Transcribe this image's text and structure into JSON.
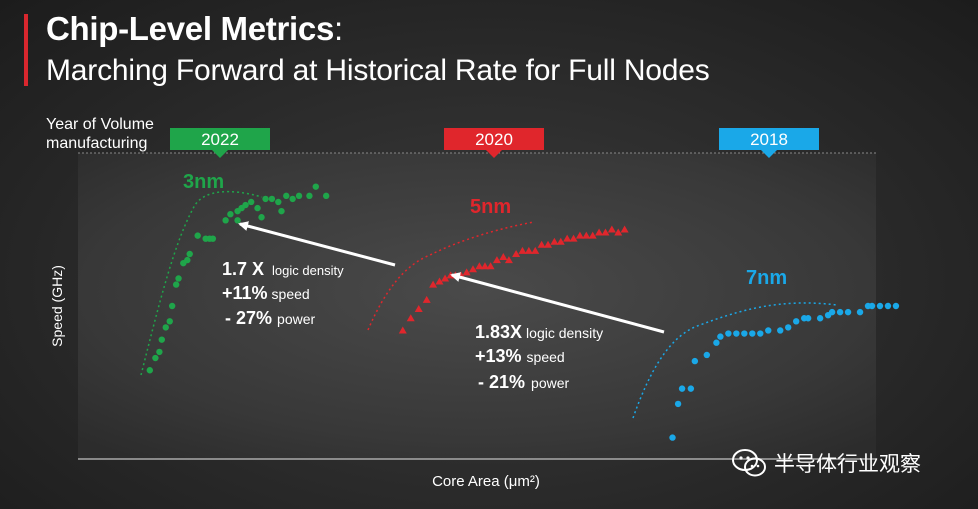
{
  "slide": {
    "title_bold": "Chip-Level Metrics",
    "title_colon": ":",
    "subtitle": "Marching Forward at Historical Rate for Full Nodes",
    "year_label": "Year of Volume manufacturing",
    "watermark": "半导体行业观察"
  },
  "colors": {
    "green": "#1fa54a",
    "red": "#e0262c",
    "blue": "#1aa8e8"
  },
  "chart_data": {
    "type": "scatter",
    "title": "",
    "xlabel": "Core Area (μm²)",
    "ylabel": "Speed (GHz)",
    "xlim": [
      0,
      100
    ],
    "ylim": [
      0,
      100
    ],
    "grid": false,
    "series": [
      {
        "name": "3nm",
        "year": "2022",
        "color": "green",
        "marker": "circle",
        "points": [
          [
            9.5,
            29
          ],
          [
            10.2,
            33
          ],
          [
            10.7,
            35
          ],
          [
            11.0,
            39
          ],
          [
            11.5,
            43
          ],
          [
            12.0,
            45
          ],
          [
            12.3,
            50
          ],
          [
            12.8,
            57
          ],
          [
            13.1,
            59
          ],
          [
            13.7,
            64
          ],
          [
            14.2,
            65
          ],
          [
            14.5,
            67
          ],
          [
            15.5,
            73
          ],
          [
            16.5,
            72
          ],
          [
            17.0,
            72
          ],
          [
            17.4,
            72
          ],
          [
            19.0,
            78
          ],
          [
            19.6,
            80
          ],
          [
            20.5,
            81
          ],
          [
            21.0,
            82
          ],
          [
            21.5,
            83
          ],
          [
            22.2,
            84
          ],
          [
            23.0,
            82
          ],
          [
            24.0,
            85
          ],
          [
            24.8,
            85
          ],
          [
            25.6,
            84
          ],
          [
            26.6,
            86
          ],
          [
            27.4,
            85
          ],
          [
            28.2,
            86
          ],
          [
            29.5,
            86
          ],
          [
            30.3,
            89
          ],
          [
            31.6,
            86
          ],
          [
            20.5,
            78
          ],
          [
            23.5,
            79
          ],
          [
            26.0,
            81
          ]
        ]
      },
      {
        "name": "5nm",
        "year": "2020",
        "color": "red",
        "marker": "triangle",
        "points": [
          [
            41.2,
            42
          ],
          [
            42.2,
            46
          ],
          [
            43.2,
            49
          ],
          [
            44.2,
            52
          ],
          [
            45.0,
            57
          ],
          [
            45.8,
            58
          ],
          [
            46.5,
            59
          ],
          [
            47.2,
            60
          ],
          [
            47.8,
            60
          ],
          [
            48.5,
            60
          ],
          [
            49.2,
            61
          ],
          [
            50.0,
            62
          ],
          [
            50.8,
            63
          ],
          [
            51.5,
            63
          ],
          [
            52.2,
            63
          ],
          [
            53.0,
            65
          ],
          [
            53.8,
            66
          ],
          [
            54.5,
            65
          ],
          [
            55.4,
            67
          ],
          [
            56.2,
            68
          ],
          [
            57.0,
            68
          ],
          [
            57.8,
            68
          ],
          [
            58.6,
            70
          ],
          [
            59.4,
            70
          ],
          [
            60.2,
            71
          ],
          [
            61.0,
            71
          ],
          [
            61.8,
            72
          ],
          [
            62.6,
            72
          ],
          [
            63.4,
            73
          ],
          [
            64.2,
            73
          ],
          [
            65.0,
            73
          ],
          [
            65.8,
            74
          ],
          [
            66.6,
            74
          ],
          [
            67.4,
            75
          ],
          [
            68.2,
            74
          ],
          [
            69.0,
            75
          ]
        ]
      },
      {
        "name": "7nm",
        "year": "2018",
        "color": "blue",
        "marker": "circle",
        "points": [
          [
            75.0,
            7
          ],
          [
            75.7,
            18
          ],
          [
            76.2,
            23
          ],
          [
            77.3,
            23
          ],
          [
            77.8,
            32
          ],
          [
            79.3,
            34
          ],
          [
            80.5,
            38
          ],
          [
            81.0,
            40
          ],
          [
            82.0,
            41
          ],
          [
            83.0,
            41
          ],
          [
            84.0,
            41
          ],
          [
            85.0,
            41
          ],
          [
            86.0,
            41
          ],
          [
            87.0,
            42
          ],
          [
            88.5,
            42
          ],
          [
            89.5,
            43
          ],
          [
            90.5,
            45
          ],
          [
            91.5,
            46
          ],
          [
            92.0,
            46
          ],
          [
            93.5,
            46
          ],
          [
            94.5,
            47
          ],
          [
            95.0,
            48
          ],
          [
            96.0,
            48
          ],
          [
            97.0,
            48
          ],
          [
            98.5,
            48
          ],
          [
            99.5,
            50
          ],
          [
            100,
            50
          ],
          [
            101,
            50
          ],
          [
            102,
            50
          ],
          [
            103,
            50
          ]
        ]
      }
    ],
    "annotations": [
      {
        "value": "1.7 X",
        "rest": "logic density"
      },
      {
        "value": "+11%",
        "rest": "speed"
      },
      {
        "value": "- 27%",
        "rest": "power"
      },
      {
        "value": "1.83X",
        "rest": "logic density"
      },
      {
        "value": "+13%",
        "rest": "speed"
      },
      {
        "value": "- 21%",
        "rest": "power"
      }
    ]
  }
}
